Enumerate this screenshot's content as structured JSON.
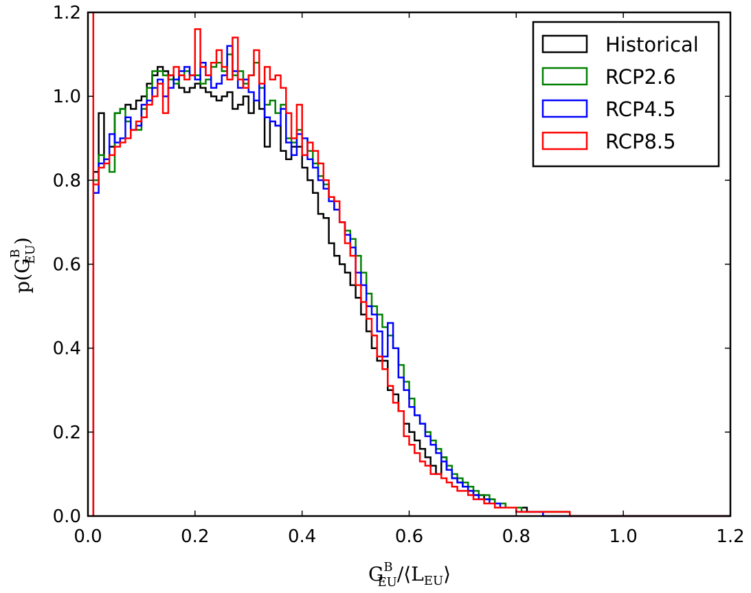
{
  "chart_data": {
    "type": "line",
    "subtype": "step-histogram",
    "title": "",
    "xlabel": {
      "main": "G",
      "sup": "B",
      "sub": "EU",
      "rest": "/⟨L",
      "rest_sub": "EU",
      "close": "⟩"
    },
    "ylabel": {
      "main": "p(G",
      "sup": "B",
      "sub": "EU",
      "close": ")"
    },
    "xlim": [
      0.0,
      1.2
    ],
    "ylim": [
      0.0,
      1.2
    ],
    "xticks": [
      "0.0",
      "0.2",
      "0.4",
      "0.6",
      "0.8",
      "1.0",
      "1.2"
    ],
    "yticks": [
      "0.0",
      "0.2",
      "0.4",
      "0.6",
      "0.8",
      "1.0",
      "1.2"
    ],
    "grid": false,
    "legend_position": "top-right",
    "bin_width": 0.01,
    "bin_start": 0.01,
    "series": [
      {
        "name": "Historical",
        "color": "#000000",
        "values": [
          0.82,
          0.96,
          0.85,
          0.88,
          0.96,
          0.97,
          0.98,
          0.97,
          0.99,
          1.0,
          1.03,
          1.05,
          1.07,
          1.06,
          1.05,
          1.04,
          1.02,
          1.01,
          1.02,
          1.03,
          1.02,
          1.01,
          1.0,
          0.99,
          1.0,
          1.01,
          0.97,
          0.98,
          1.0,
          0.96,
          0.99,
          0.97,
          0.88,
          0.94,
          0.93,
          0.87,
          0.85,
          0.88,
          0.88,
          0.83,
          0.8,
          0.77,
          0.72,
          0.71,
          0.65,
          0.62,
          0.6,
          0.58,
          0.55,
          0.52,
          0.48,
          0.44,
          0.4,
          0.37,
          0.37,
          0.3,
          0.29,
          0.25,
          0.22,
          0.2,
          0.18,
          0.16,
          0.14,
          0.12,
          0.1,
          0.14,
          0.11,
          0.09,
          0.08,
          0.07,
          0.06,
          0.05,
          0.05,
          0.04,
          0.04,
          0.03,
          0.03,
          0.02,
          0.02,
          0.02,
          0.02,
          0.01,
          0.01,
          0.01,
          0.01,
          0.01,
          0.01,
          0.01,
          0.01,
          0.0,
          0.0,
          0.0,
          0.0,
          0.0,
          0.0,
          0.0,
          0.0,
          0.0,
          0.0,
          0.0,
          0.0,
          0.0,
          0.0,
          0.0,
          0.0,
          0.0,
          0.0,
          0.0,
          0.0,
          0.0,
          0.0,
          0.0,
          0.0,
          0.0,
          0.0,
          0.0,
          0.0,
          0.0,
          0.0,
          0.0
        ]
      },
      {
        "name": "RCP2.6",
        "color": "#008000",
        "values": [
          0.8,
          0.86,
          0.85,
          0.82,
          0.96,
          0.97,
          0.94,
          0.92,
          0.92,
          0.97,
          1.02,
          1.06,
          1.06,
          1.05,
          1.04,
          1.03,
          1.05,
          1.06,
          1.05,
          1.05,
          1.03,
          1.04,
          1.07,
          1.08,
          1.06,
          1.1,
          1.05,
          1.06,
          1.03,
          1.05,
          1.08,
          1.02,
          0.98,
          0.99,
          0.96,
          0.98,
          0.9,
          0.89,
          0.92,
          0.9,
          0.87,
          0.84,
          0.81,
          0.79,
          0.76,
          0.73,
          0.7,
          0.68,
          0.66,
          0.62,
          0.58,
          0.53,
          0.5,
          0.48,
          0.45,
          0.43,
          0.4,
          0.36,
          0.32,
          0.28,
          0.24,
          0.22,
          0.2,
          0.18,
          0.16,
          0.14,
          0.12,
          0.1,
          0.09,
          0.08,
          0.07,
          0.06,
          0.05,
          0.05,
          0.04,
          0.03,
          0.03,
          0.02,
          0.02,
          0.02,
          0.01,
          0.01,
          0.01,
          0.01,
          0.01,
          0.01,
          0.01,
          0.01,
          0.01,
          0.0,
          0.0,
          0.0,
          0.0,
          0.0,
          0.0,
          0.0,
          0.0,
          0.0,
          0.0,
          0.0,
          0.0,
          0.0,
          0.0,
          0.0,
          0.0,
          0.0,
          0.0,
          0.0,
          0.0,
          0.0,
          0.0,
          0.0,
          0.0,
          0.0,
          0.0,
          0.0,
          0.0,
          0.0,
          0.0,
          0.0
        ]
      },
      {
        "name": "RCP4.5",
        "color": "#0000ff",
        "values": [
          0.77,
          0.84,
          0.85,
          0.91,
          0.89,
          0.9,
          0.95,
          0.92,
          0.93,
          0.98,
          0.99,
          1.02,
          1.04,
          1.0,
          1.02,
          1.04,
          1.06,
          1.07,
          1.05,
          1.04,
          1.08,
          1.05,
          1.02,
          1.03,
          1.05,
          1.12,
          1.06,
          1.02,
          1.04,
          1.01,
          0.99,
          1.03,
          0.95,
          0.94,
          0.93,
          0.97,
          0.89,
          0.86,
          0.91,
          0.9,
          0.85,
          0.83,
          0.8,
          0.78,
          0.75,
          0.73,
          0.7,
          0.67,
          0.64,
          0.58,
          0.55,
          0.5,
          0.48,
          0.44,
          0.38,
          0.46,
          0.4,
          0.33,
          0.3,
          0.26,
          0.24,
          0.22,
          0.19,
          0.17,
          0.15,
          0.13,
          0.11,
          0.09,
          0.08,
          0.07,
          0.06,
          0.05,
          0.04,
          0.04,
          0.03,
          0.03,
          0.02,
          0.02,
          0.02,
          0.01,
          0.01,
          0.01,
          0.01,
          0.01,
          0.0,
          0.0,
          0.0,
          0.0,
          0.0,
          0.0,
          0.0,
          0.0,
          0.0,
          0.0,
          0.0,
          0.0,
          0.0,
          0.0,
          0.0,
          0.0,
          0.0,
          0.0,
          0.0,
          0.0,
          0.0,
          0.0,
          0.0,
          0.0,
          0.0,
          0.0,
          0.0,
          0.0,
          0.0,
          0.0,
          0.0,
          0.0,
          0.0,
          0.0,
          0.0,
          0.0
        ]
      },
      {
        "name": "RCP8.5",
        "color": "#ff0000",
        "values": [
          0.79,
          0.83,
          0.84,
          0.86,
          0.88,
          0.89,
          0.9,
          0.92,
          0.94,
          0.95,
          0.98,
          1.0,
          1.03,
          0.96,
          1.05,
          1.07,
          1.05,
          1.04,
          1.05,
          1.16,
          1.07,
          1.05,
          1.08,
          1.11,
          1.07,
          1.04,
          1.14,
          1.04,
          1.02,
          1.05,
          1.11,
          1.03,
          1.07,
          1.04,
          1.05,
          1.02,
          0.96,
          0.9,
          0.98,
          0.86,
          0.89,
          0.87,
          0.84,
          0.8,
          0.76,
          0.75,
          0.7,
          0.65,
          0.62,
          0.55,
          0.51,
          0.47,
          0.43,
          0.38,
          0.35,
          0.31,
          0.27,
          0.25,
          0.19,
          0.17,
          0.15,
          0.13,
          0.12,
          0.1,
          0.1,
          0.09,
          0.08,
          0.07,
          0.06,
          0.06,
          0.05,
          0.04,
          0.04,
          0.03,
          0.03,
          0.02,
          0.02,
          0.02,
          0.02,
          0.01,
          0.01,
          0.01,
          0.01,
          0.01,
          0.01,
          0.01,
          0.01,
          0.01,
          0.01,
          0.0,
          0.0,
          0.0,
          0.0,
          0.0,
          0.0,
          0.0,
          0.0,
          0.0,
          0.0,
          0.0,
          0.0,
          0.0,
          0.0,
          0.0,
          0.0,
          0.0,
          0.0,
          0.0,
          0.0,
          0.0,
          0.0,
          0.0,
          0.0,
          0.0,
          0.0,
          0.0,
          0.0,
          0.0,
          0.0,
          0.0
        ],
        "spike": {
          "x": 0.01,
          "y": 1.2
        }
      }
    ]
  }
}
